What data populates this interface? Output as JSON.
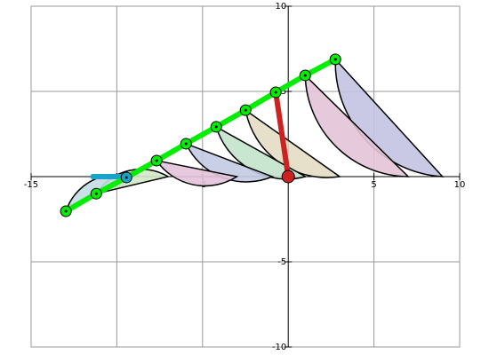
{
  "chart_data": {
    "type": "linkage",
    "xlim": [
      -15,
      10
    ],
    "ylim": [
      -10,
      10
    ],
    "xticks": [
      -15,
      -10,
      -5,
      5,
      10
    ],
    "yticks": [
      -10,
      -5,
      5,
      10
    ],
    "grid": true,
    "chain": {
      "color": "#00ee00",
      "x": [
        -12.97,
        -11.2,
        -9.44,
        -7.68,
        -5.96,
        -4.2,
        -2.49,
        -0.73,
        0.99,
        2.75
      ],
      "y": [
        -2.03,
        -1.0,
        -0.05,
        0.94,
        1.93,
        2.92,
        3.9,
        4.95,
        5.94,
        6.88
      ]
    },
    "lobes": [
      {
        "x0": 2.75,
        "y0": 6.88,
        "x1": 9.0,
        "color": "#c3c3e3"
      },
      {
        "x0": 0.99,
        "y0": 5.94,
        "x1": 7.0,
        "color": "#e3c3d6"
      },
      {
        "x0": -2.49,
        "y0": 3.9,
        "x1": 3.0,
        "color": "#e3dcc3"
      },
      {
        "x0": -4.2,
        "y0": 2.92,
        "x1": 1.0,
        "color": "#c3e3cc"
      },
      {
        "x0": -5.96,
        "y0": 1.93,
        "x1": -0.93,
        "color": "#c3cbe3"
      },
      {
        "x0": -7.68,
        "y0": 0.94,
        "x1": -3.0,
        "color": "#e3c3dc"
      },
      {
        "x0": -11.2,
        "y0": -1.0,
        "x1": -7.0,
        "color": "#d3e8c8"
      },
      {
        "x0": -12.97,
        "y0": -2.03,
        "x1": -9.1,
        "color": "#c3dde3"
      }
    ],
    "crank": {
      "color": "#cc2222",
      "x": [
        0,
        -0.73
      ],
      "y": [
        0,
        4.95
      ]
    },
    "slider": {
      "color": "#1aa3c8",
      "x": [
        -9.44,
        -11.4
      ],
      "y": [
        0,
        0
      ]
    }
  }
}
